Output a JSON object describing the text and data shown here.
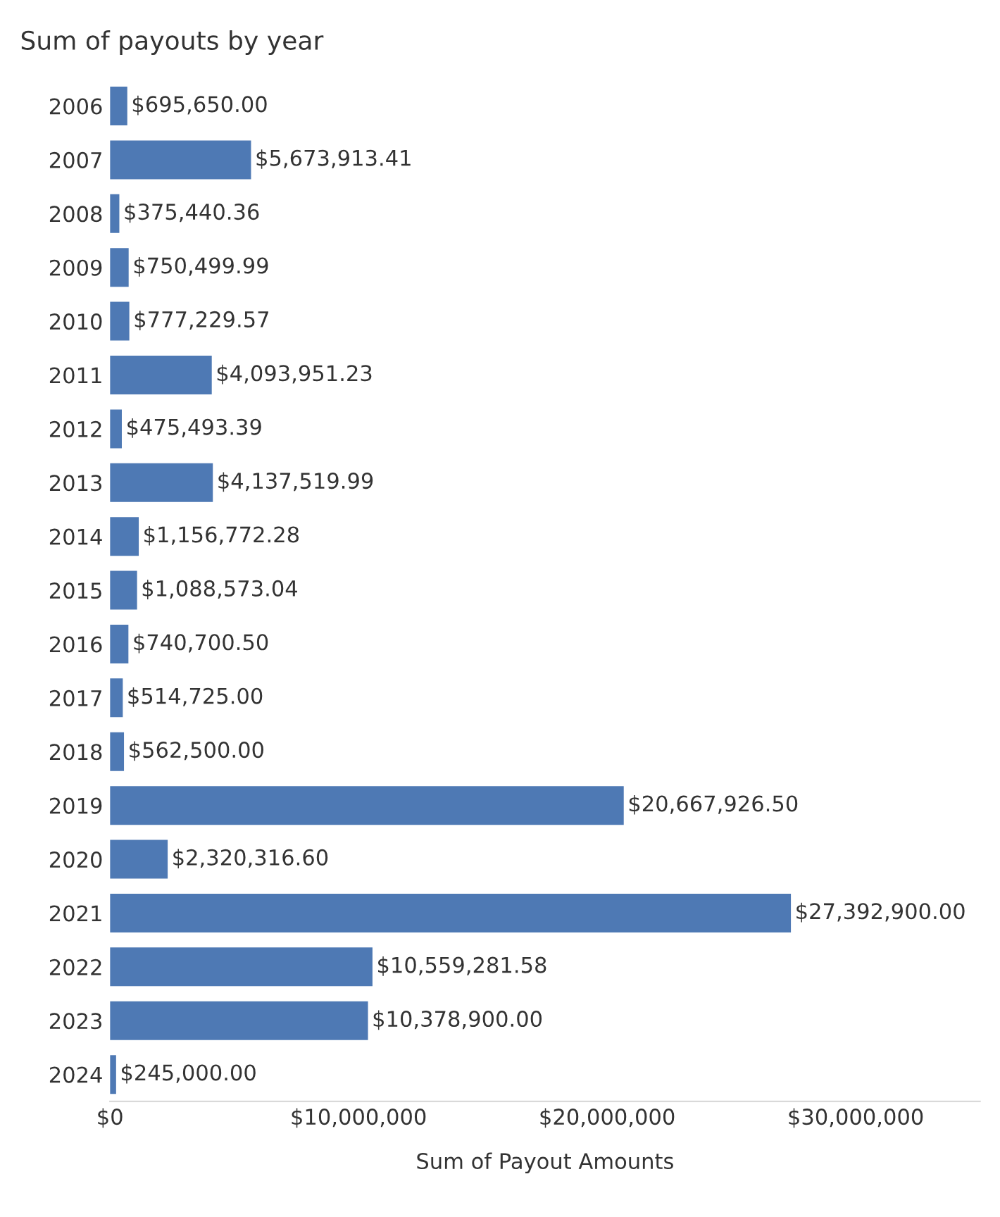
{
  "chart_data": {
    "type": "bar",
    "orientation": "horizontal",
    "title": "Sum of payouts by year",
    "xlabel": "Sum of Payout Amounts",
    "categories": [
      "2006",
      "2007",
      "2008",
      "2009",
      "2010",
      "2011",
      "2012",
      "2013",
      "2014",
      "2015",
      "2016",
      "2017",
      "2018",
      "2019",
      "2020",
      "2021",
      "2022",
      "2023",
      "2024"
    ],
    "values": [
      695650.0,
      5673913.41,
      375440.36,
      750499.99,
      777229.57,
      4093951.23,
      475493.39,
      4137519.99,
      1156772.28,
      1088573.04,
      740700.5,
      514725.0,
      562500.0,
      20667926.5,
      2320316.6,
      27392900.0,
      10559281.58,
      10378900.0,
      245000.0
    ],
    "value_labels": [
      "$695,650.00",
      "$5,673,913.41",
      "$375,440.36",
      "$750,499.99",
      "$777,229.57",
      "$4,093,951.23",
      "$475,493.39",
      "$4,137,519.99",
      "$1,156,772.28",
      "$1,088,573.04",
      "$740,700.50",
      "$514,725.00",
      "$562,500.00",
      "$20,667,926.50",
      "$2,320,316.60",
      "$27,392,900.00",
      "$10,559,281.58",
      "$10,378,900.00",
      "$245,000.00"
    ],
    "color": "#4e79b4",
    "xlim": [
      0,
      35000000
    ],
    "xticks": [
      {
        "value": 0,
        "label": "$0"
      },
      {
        "value": 10000000,
        "label": "$10,000,000"
      },
      {
        "value": 20000000,
        "label": "$20,000,000"
      },
      {
        "value": 30000000,
        "label": "$30,000,000"
      }
    ],
    "grid": false,
    "legend": false
  }
}
